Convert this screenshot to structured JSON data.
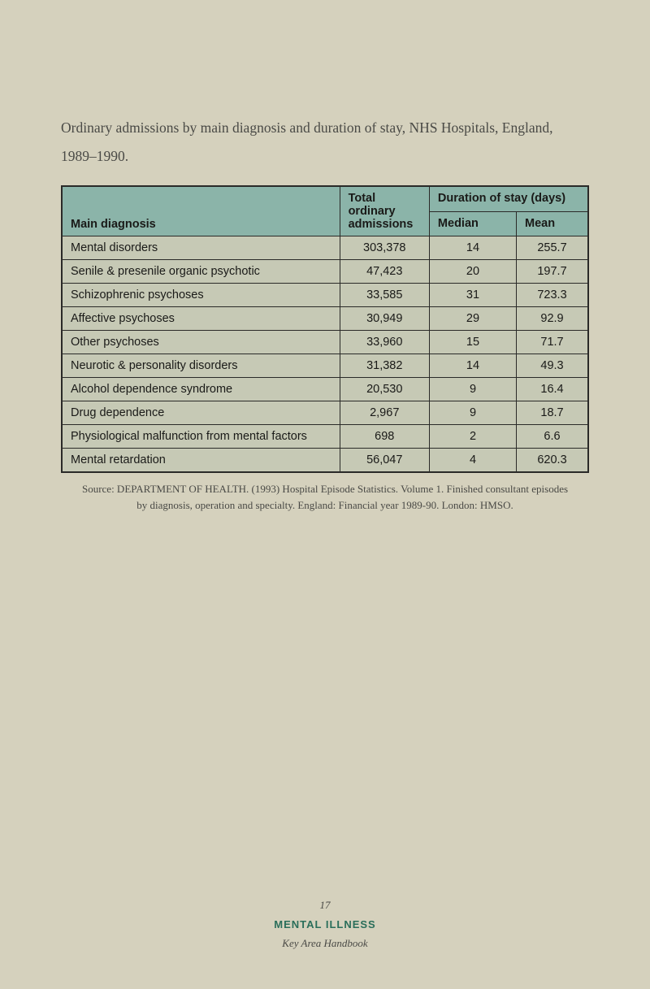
{
  "page": {
    "background_color": "#d5d1bd",
    "header_background_color": "#8bb4a9",
    "row_background_color": "#c6c9b5"
  },
  "title_line1": "Ordinary admissions by main diagnosis and duration of stay, NHS Hospitals, England,",
  "title_line2": "1989–1990.",
  "table": {
    "headers": {
      "main_diagnosis": "Main diagnosis",
      "total_line1": "Total",
      "total_line2": "ordinary",
      "total_line3": "admissions",
      "duration_group": "Duration of stay (days)",
      "median": "Median",
      "mean": "Mean"
    },
    "rows": [
      {
        "diagnosis": "Mental disorders",
        "total": "303,378",
        "median": "14",
        "mean": "255.7"
      },
      {
        "diagnosis": "Senile & presenile organic psychotic",
        "total": "47,423",
        "median": "20",
        "mean": "197.7"
      },
      {
        "diagnosis": "Schizophrenic psychoses",
        "total": "33,585",
        "median": "31",
        "mean": "723.3"
      },
      {
        "diagnosis": "Affective psychoses",
        "total": "30,949",
        "median": "29",
        "mean": "92.9"
      },
      {
        "diagnosis": "Other psychoses",
        "total": "33,960",
        "median": "15",
        "mean": "71.7"
      },
      {
        "diagnosis": "Neurotic & personality disorders",
        "total": "31,382",
        "median": "14",
        "mean": "49.3"
      },
      {
        "diagnosis": "Alcohol dependence syndrome",
        "total": "20,530",
        "median": "9",
        "mean": "16.4"
      },
      {
        "diagnosis": "Drug dependence",
        "total": "2,967",
        "median": "9",
        "mean": "18.7"
      },
      {
        "diagnosis": "Physiological malfunction from mental factors",
        "total": "698",
        "median": "2",
        "mean": "6.6"
      },
      {
        "diagnosis": "Mental retardation",
        "total": "56,047",
        "median": "4",
        "mean": "620.3"
      }
    ]
  },
  "source_line1": "Source:  DEPARTMENT OF HEALTH. (1993) Hospital Episode Statistics. Volume 1. Finished consultant episodes",
  "source_line2": "by diagnosis, operation and specialty. England: Financial year 1989-90. London: HMSO.",
  "footer": {
    "page_number": "17",
    "section": "MENTAL ILLNESS",
    "section_color": "#2a6e5a",
    "book_title": "Key Area Handbook"
  }
}
